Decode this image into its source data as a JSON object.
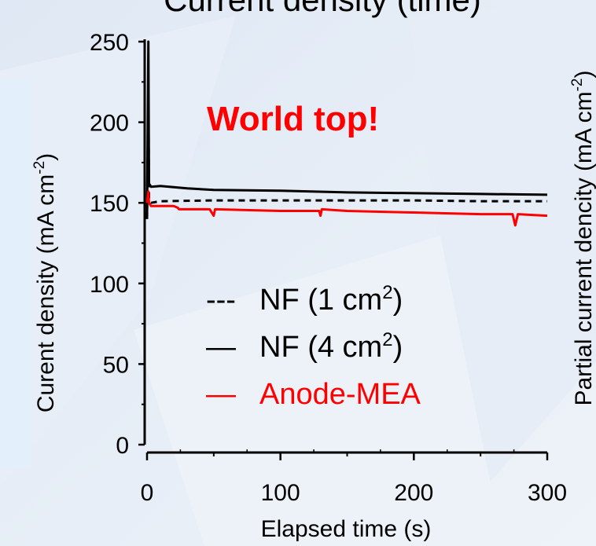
{
  "chart_data": {
    "type": "line",
    "title": "Current density (time)",
    "xlabel": "Elapsed time (s)",
    "ylabel": "Curent density (mA cm",
    "ylabel_sup": "-2",
    "ylabel_end": ")",
    "y2label": "Partial current dencity (mA cm",
    "y2label_sup": "-2",
    "y2label_end": ")",
    "xlim": [
      0,
      300
    ],
    "ylim": [
      0,
      250
    ],
    "xticks": [
      "0",
      "100",
      "200",
      "300"
    ],
    "yticks": [
      "0",
      "50",
      "100",
      "150",
      "200",
      "250"
    ],
    "grid": false,
    "legend_position": "bottom-right",
    "annotation": "World top!",
    "annotation_color": "#ff0000",
    "series": [
      {
        "name": "NF (1 cm",
        "name_sup": "2",
        "name_end": ")",
        "legend_symbol": "---",
        "style": "dashed",
        "color": "#000000",
        "x": [
          0,
          1,
          1.5,
          3,
          10,
          50,
          100,
          150,
          200,
          250,
          300
        ],
        "y": [
          140,
          220,
          152,
          150,
          151,
          151.5,
          151.5,
          151.5,
          151.5,
          151,
          151
        ]
      },
      {
        "name": "NF (4 cm",
        "name_sup": "2",
        "name_end": ")",
        "legend_symbol": "—",
        "style": "solid",
        "color": "#000000",
        "x": [
          0,
          1,
          1.5,
          3,
          10,
          30,
          50,
          100,
          150,
          200,
          250,
          300
        ],
        "y": [
          140,
          250,
          162,
          160,
          160.5,
          159,
          158,
          157.5,
          156.5,
          156,
          155.5,
          155
        ]
      },
      {
        "name": "Anode-MEA",
        "legend_symbol": "—",
        "style": "solid",
        "color": "#ff0000",
        "x": [
          0,
          1,
          1.5,
          3,
          20,
          23,
          24,
          47,
          50,
          51,
          100,
          129,
          130,
          131,
          150,
          200,
          250,
          274,
          276,
          278,
          300
        ],
        "y": [
          150,
          157,
          150,
          148,
          148,
          147,
          146,
          146,
          142,
          146,
          145,
          145,
          142,
          146,
          145,
          144,
          143,
          143,
          136,
          143,
          142
        ]
      }
    ]
  }
}
